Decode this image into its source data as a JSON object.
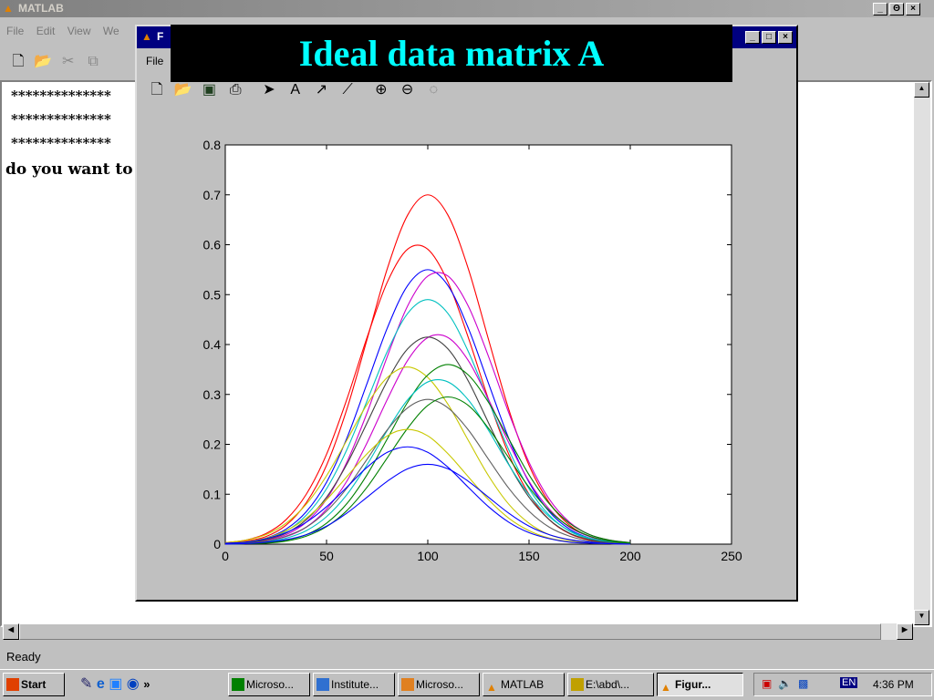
{
  "main_window": {
    "title": "MATLAB",
    "menu": [
      "File",
      "Edit",
      "View",
      "We"
    ],
    "controls": [
      "_",
      "Θ",
      "×"
    ],
    "command_lines": [
      "**************",
      "**************",
      "**************",
      "do you want to"
    ],
    "status": "Ready"
  },
  "figure_window": {
    "title_fragment": "F",
    "menu": [
      "File"
    ],
    "controls": [
      "_",
      "□",
      "×"
    ],
    "toolbar_icons": [
      "new-icon",
      "open-icon",
      "save-icon",
      "print-icon",
      "arrow-pointer-icon",
      "text-icon",
      "arrow-icon",
      "line-icon",
      "zoom-in-icon",
      "zoom-out-icon",
      "rotate-icon"
    ]
  },
  "banner": {
    "text": "Ideal data matrix A",
    "text_color": "#00ffff",
    "background": "#000000"
  },
  "taskbar": {
    "start": "Start",
    "chevron": "»",
    "tasks": [
      "Microso...",
      "Institute...",
      "Microso...",
      "MATLAB",
      "E:\\abd\\...",
      "Figur..."
    ],
    "lang": "EN",
    "clock": "4:36 PM"
  },
  "chart_data": {
    "type": "line",
    "xlim": [
      0,
      250
    ],
    "ylim": [
      0,
      0.8
    ],
    "xticks": [
      "0",
      "50",
      "100",
      "150",
      "200",
      "250"
    ],
    "yticks": [
      "0",
      "0.1",
      "0.2",
      "0.3",
      "0.4",
      "0.5",
      "0.6",
      "0.7",
      "0.8"
    ],
    "grid": false,
    "x": [
      0,
      10,
      20,
      30,
      40,
      50,
      60,
      70,
      80,
      90,
      100,
      110,
      120,
      130,
      140,
      150,
      160,
      170,
      180,
      190,
      200
    ],
    "series": [
      {
        "color": "#ff0000",
        "values": [
          0.002,
          0.006,
          0.015,
          0.038,
          0.083,
          0.158,
          0.27,
          0.41,
          0.552,
          0.659,
          0.7,
          0.659,
          0.552,
          0.41,
          0.27,
          0.158,
          0.083,
          0.038,
          0.015,
          0.006,
          0.002
        ]
      },
      {
        "color": "#ff0000",
        "values": [
          0.003,
          0.008,
          0.021,
          0.049,
          0.1,
          0.18,
          0.29,
          0.414,
          0.525,
          0.591,
          0.591,
          0.525,
          0.414,
          0.29,
          0.18,
          0.1,
          0.049,
          0.021,
          0.008,
          0.003,
          0.001
        ]
      },
      {
        "color": "#0000ff",
        "values": [
          0.002,
          0.004,
          0.012,
          0.03,
          0.065,
          0.124,
          0.212,
          0.322,
          0.433,
          0.518,
          0.55,
          0.518,
          0.433,
          0.322,
          0.212,
          0.124,
          0.065,
          0.03,
          0.012,
          0.004,
          0.002
        ]
      },
      {
        "color": "#cc00cc",
        "values": [
          0.001,
          0.003,
          0.008,
          0.019,
          0.044,
          0.09,
          0.164,
          0.263,
          0.376,
          0.477,
          0.537,
          0.537,
          0.477,
          0.376,
          0.263,
          0.164,
          0.09,
          0.044,
          0.019,
          0.008,
          0.003
        ]
      },
      {
        "color": "#00c0c0",
        "values": [
          0.001,
          0.004,
          0.011,
          0.026,
          0.058,
          0.111,
          0.189,
          0.287,
          0.386,
          0.462,
          0.49,
          0.462,
          0.386,
          0.287,
          0.189,
          0.111,
          0.058,
          0.026,
          0.011,
          0.004,
          0.001
        ]
      },
      {
        "color": "#cc00cc",
        "values": [
          0.0,
          0.002,
          0.006,
          0.015,
          0.034,
          0.07,
          0.126,
          0.203,
          0.29,
          0.368,
          0.414,
          0.414,
          0.368,
          0.29,
          0.203,
          0.126,
          0.07,
          0.034,
          0.015,
          0.006,
          0.002
        ]
      },
      {
        "color": "#404040",
        "values": [
          0.001,
          0.003,
          0.009,
          0.022,
          0.049,
          0.094,
          0.16,
          0.243,
          0.327,
          0.391,
          0.415,
          0.391,
          0.327,
          0.243,
          0.16,
          0.094,
          0.049,
          0.022,
          0.009,
          0.003,
          0.001
        ]
      },
      {
        "color": "#c8c800",
        "values": [
          0.003,
          0.008,
          0.019,
          0.042,
          0.08,
          0.137,
          0.208,
          0.28,
          0.334,
          0.355,
          0.334,
          0.28,
          0.208,
          0.137,
          0.08,
          0.042,
          0.019,
          0.008,
          0.003,
          0.001,
          0.0
        ]
      },
      {
        "color": "#008000",
        "values": [
          0.0,
          0.001,
          0.003,
          0.008,
          0.019,
          0.042,
          0.081,
          0.139,
          0.211,
          0.284,
          0.339,
          0.36,
          0.339,
          0.284,
          0.211,
          0.139,
          0.081,
          0.042,
          0.019,
          0.008,
          0.003
        ]
      },
      {
        "color": "#00c0c0",
        "values": [
          0.0,
          0.002,
          0.005,
          0.012,
          0.027,
          0.055,
          0.099,
          0.159,
          0.228,
          0.289,
          0.325,
          0.325,
          0.289,
          0.228,
          0.159,
          0.099,
          0.055,
          0.027,
          0.012,
          0.005,
          0.002
        ]
      },
      {
        "color": "#606060",
        "values": [
          0.001,
          0.002,
          0.006,
          0.016,
          0.034,
          0.066,
          0.112,
          0.17,
          0.229,
          0.273,
          0.29,
          0.273,
          0.229,
          0.17,
          0.112,
          0.066,
          0.034,
          0.016,
          0.006,
          0.002,
          0.001
        ]
      },
      {
        "color": "#008000",
        "values": [
          0.0,
          0.001,
          0.002,
          0.006,
          0.016,
          0.035,
          0.067,
          0.114,
          0.173,
          0.232,
          0.278,
          0.295,
          0.278,
          0.232,
          0.173,
          0.114,
          0.067,
          0.035,
          0.016,
          0.006,
          0.002
        ]
      },
      {
        "color": "#c8c800",
        "values": [
          0.002,
          0.005,
          0.012,
          0.027,
          0.052,
          0.089,
          0.135,
          0.181,
          0.217,
          0.23,
          0.217,
          0.181,
          0.135,
          0.089,
          0.052,
          0.027,
          0.012,
          0.005,
          0.002,
          0.001,
          0.0
        ]
      },
      {
        "color": "#0000ff",
        "values": [
          0.002,
          0.004,
          0.011,
          0.023,
          0.044,
          0.075,
          0.114,
          0.154,
          0.184,
          0.195,
          0.184,
          0.154,
          0.114,
          0.075,
          0.044,
          0.023,
          0.011,
          0.004,
          0.002,
          0.001,
          0.0
        ]
      },
      {
        "color": "#0000ff",
        "values": [
          0.0,
          0.001,
          0.004,
          0.009,
          0.019,
          0.036,
          0.062,
          0.094,
          0.126,
          0.151,
          0.16,
          0.151,
          0.126,
          0.094,
          0.062,
          0.036,
          0.019,
          0.009,
          0.004,
          0.001,
          0.0
        ]
      }
    ]
  }
}
